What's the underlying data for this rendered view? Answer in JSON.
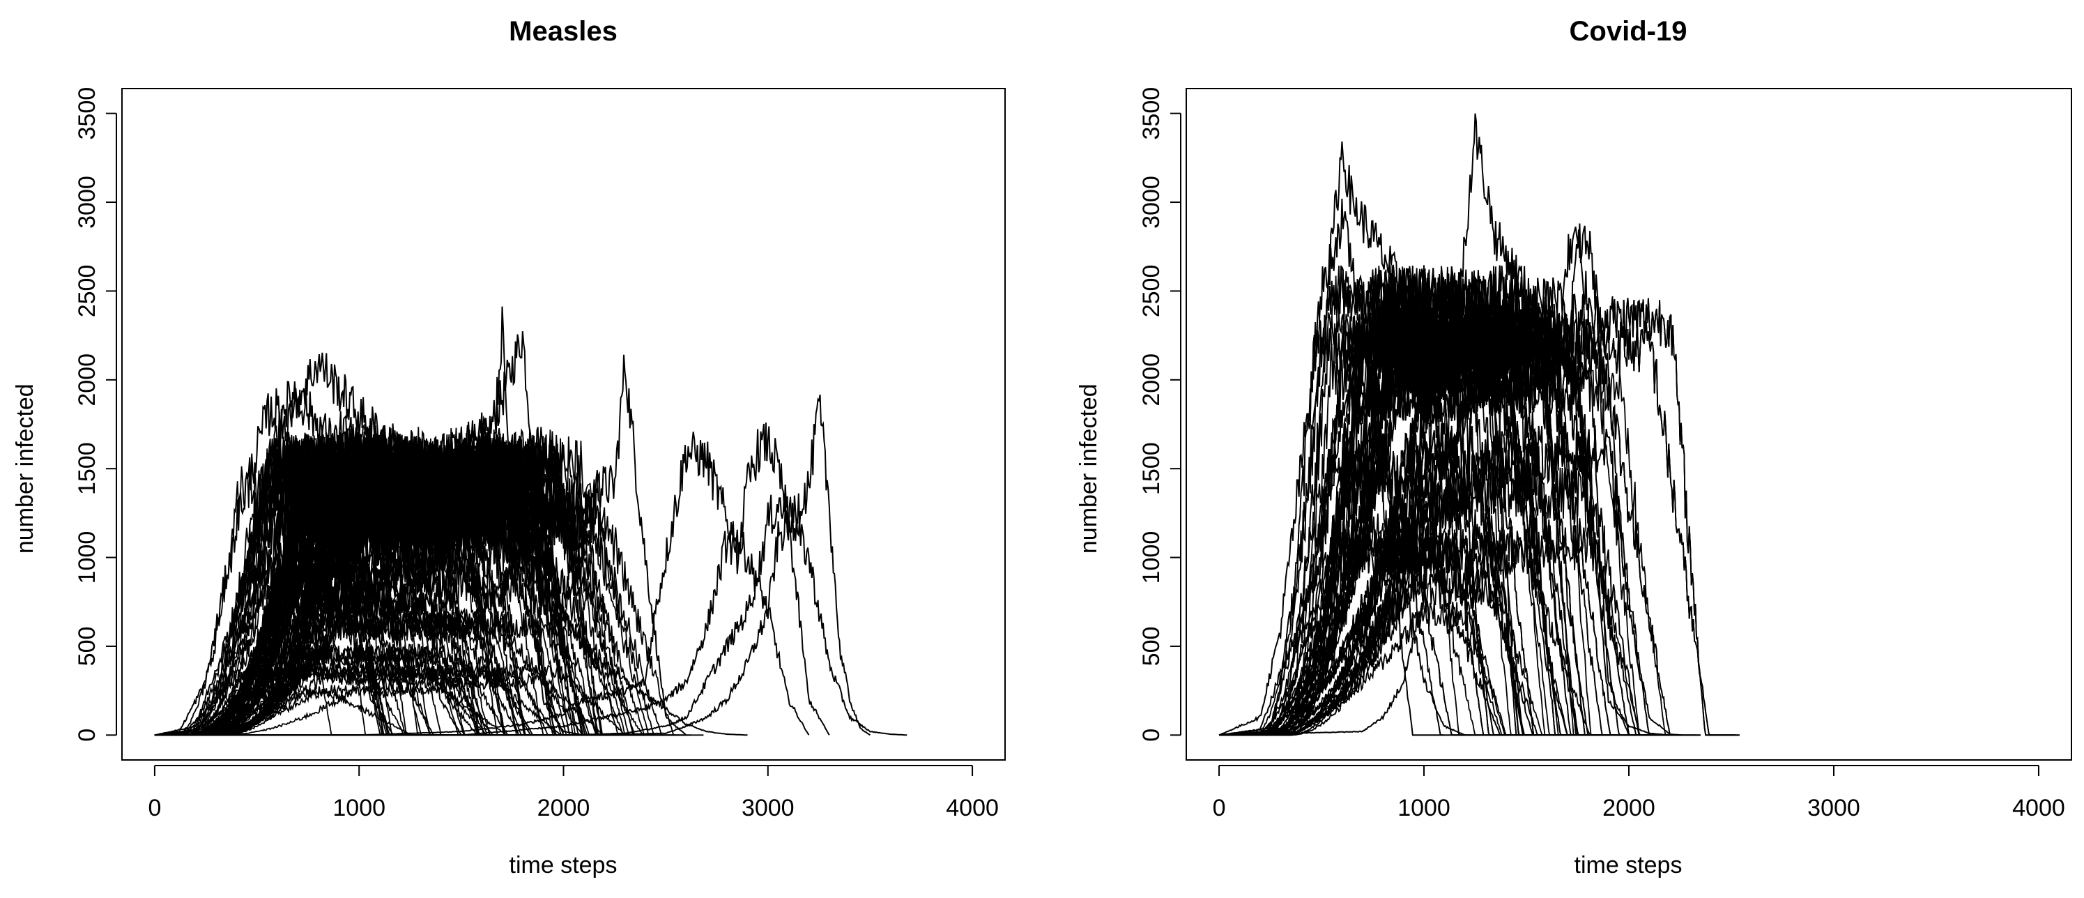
{
  "chart_data": [
    {
      "type": "line",
      "title": "Measles",
      "xlabel": "time steps",
      "ylabel": "number infected",
      "xlim": [
        -160,
        4160
      ],
      "ylim": [
        -140,
        3640
      ],
      "xticks": [
        0,
        1000,
        2000,
        3000,
        4000
      ],
      "yticks": [
        0,
        500,
        1000,
        1500,
        2000,
        2500,
        3000,
        3500
      ],
      "xtick_labels": [
        "0",
        "1000",
        "2000",
        "3000",
        "4000"
      ],
      "ytick_labels": [
        "0",
        "500",
        "1000",
        "1500",
        "2000",
        "2500",
        "3000",
        "3500"
      ],
      "grid": false,
      "line_color": "#000000",
      "n_series": 100,
      "series_summary": "Stochastic epidemic simulation runs; most runs start near t=100-250, rise to a noisy plateau of about 1200-1500 infected with peaks near 2000-2300, and die out between t=1000 and t=2000; a few late runs extend to about t=3600.",
      "series": [
        {
          "x": [
            0,
            150,
            300,
            450,
            550,
            650,
            800,
            950,
            1100,
            1250,
            1400,
            1500,
            1600,
            1700,
            1800,
            1850,
            1900,
            2000
          ],
          "values": [
            0,
            20,
            200,
            700,
            1400,
            1600,
            1500,
            1450,
            1500,
            1400,
            1450,
            1500,
            1600,
            1900,
            2250,
            1600,
            300,
            0
          ]
        },
        {
          "x": [
            0,
            200,
            350,
            500,
            600,
            700,
            800,
            900,
            1000,
            1100,
            1200,
            1300,
            1500,
            1600,
            1700,
            1750,
            1850,
            1950,
            2050,
            2150,
            2250,
            2300,
            2400,
            2500,
            2600
          ],
          "values": [
            0,
            30,
            150,
            500,
            900,
            1200,
            1300,
            1350,
            1200,
            1000,
            800,
            700,
            600,
            700,
            800,
            1000,
            1100,
            900,
            800,
            1400,
            1400,
            2100,
            1000,
            100,
            0
          ]
        },
        {
          "x": [
            0,
            250,
            400,
            600,
            800,
            1000,
            1200,
            1400,
            1550,
            1650,
            1700,
            1750,
            1800,
            1900,
            2000,
            2100,
            2200,
            2300,
            2400,
            2500,
            2600,
            2700,
            2800,
            2900
          ],
          "values": [
            0,
            10,
            80,
            300,
            600,
            800,
            900,
            1000,
            1300,
            1500,
            2300,
            1200,
            1100,
            1000,
            700,
            500,
            400,
            300,
            220,
            150,
            60,
            20,
            5,
            0
          ]
        },
        {
          "x": [
            0,
            1000,
            1500,
            1800,
            2000,
            2100,
            2200,
            2300,
            2400,
            2450,
            2500,
            2600,
            2700,
            2800,
            2900,
            3000,
            3100,
            3200
          ],
          "values": [
            0,
            0,
            20,
            60,
            120,
            200,
            220,
            250,
            300,
            700,
            1000,
            1600,
            1550,
            1200,
            1000,
            700,
            200,
            0
          ]
        },
        {
          "x": [
            0,
            1500,
            2000,
            2200,
            2400,
            2500,
            2600,
            2700,
            2800,
            2850,
            2900,
            2950,
            3000,
            3050,
            3100,
            3200,
            3300
          ],
          "values": [
            0,
            0,
            50,
            100,
            150,
            200,
            300,
            600,
            1100,
            1000,
            1400,
            1600,
            1650,
            1500,
            1200,
            200,
            0
          ]
        },
        {
          "x": [
            0,
            2000,
            2300,
            2500,
            2600,
            2700,
            2800,
            2900,
            3000,
            3050,
            3100,
            3150,
            3200,
            3250,
            3300,
            3350,
            3400,
            3450,
            3500
          ],
          "values": [
            0,
            0,
            5,
            10,
            50,
            100,
            200,
            400,
            700,
            1100,
            1200,
            1300,
            1400,
            1850,
            1300,
            500,
            200,
            40,
            0
          ]
        },
        {
          "x": [
            0,
            2000,
            2300,
            2500,
            2600,
            2700,
            2800,
            2900,
            2950,
            3000,
            3050,
            3100,
            3200,
            3300,
            3400,
            3500,
            3600,
            3680
          ],
          "values": [
            0,
            0,
            10,
            50,
            100,
            300,
            500,
            700,
            900,
            1200,
            1300,
            1250,
            1000,
            400,
            100,
            20,
            5,
            0
          ]
        },
        {
          "x": [
            0,
            200,
            400,
            600,
            800,
            1000,
            1200,
            1400,
            1600,
            1800,
            1900,
            2000,
            2100
          ],
          "values": [
            0,
            50,
            700,
            1700,
            2100,
            1800,
            1600,
            1500,
            1700,
            1100,
            200,
            20,
            0
          ]
        },
        {
          "x": [
            0,
            120,
            250,
            400,
            550,
            700,
            900,
            1100,
            1250,
            1400,
            1500
          ],
          "values": [
            0,
            20,
            300,
            1200,
            1800,
            1900,
            1600,
            1400,
            900,
            200,
            0
          ]
        },
        {
          "x": [
            0,
            300,
            500,
            700,
            900,
            1100,
            1300,
            1500,
            1650,
            1750,
            1850
          ],
          "values": [
            0,
            30,
            400,
            1200,
            1700,
            1600,
            1500,
            1300,
            900,
            200,
            0
          ]
        }
      ]
    },
    {
      "type": "line",
      "title": "Covid-19",
      "xlabel": "time steps",
      "ylabel": "number infected",
      "xlim": [
        -160,
        4160
      ],
      "ylim": [
        -140,
        3640
      ],
      "xticks": [
        0,
        1000,
        2000,
        3000,
        4000
      ],
      "yticks": [
        0,
        500,
        1000,
        1500,
        2000,
        2500,
        3000,
        3500
      ],
      "xtick_labels": [
        "0",
        "1000",
        "2000",
        "3000",
        "4000"
      ],
      "ytick_labels": [
        "0",
        "500",
        "1000",
        "1500",
        "2000",
        "2500",
        "3000",
        "3500"
      ],
      "grid": false,
      "line_color": "#000000",
      "n_series": 100,
      "series_summary": "Stochastic epidemic simulation runs; runs rise steeply from about t=150-300 to a noisy plateau near 2000-2500 infected with peaks up to about 3400, and die out between t=1000 and t=2250.",
      "series": [
        {
          "x": [
            0,
            200,
            350,
            500,
            600,
            650,
            750,
            850,
            950,
            1050,
            1150,
            1250,
            1350,
            1450,
            1550,
            1650,
            1750,
            1800,
            1850,
            1900,
            2000,
            2100,
            2200
          ],
          "values": [
            0,
            30,
            500,
            2200,
            3300,
            3000,
            2800,
            2600,
            2400,
            2300,
            2200,
            2400,
            2300,
            2200,
            2100,
            2200,
            2000,
            1500,
            800,
            200,
            50,
            10,
            0
          ]
        },
        {
          "x": [
            0,
            250,
            400,
            550,
            650,
            750,
            850,
            950,
            1050,
            1150,
            1250,
            1350,
            1450,
            1550,
            1650,
            1700,
            1750,
            1800,
            1850,
            1900,
            2000
          ],
          "values": [
            0,
            20,
            300,
            1500,
            2100,
            2200,
            2100,
            2000,
            2100,
            2200,
            3400,
            2800,
            2600,
            2400,
            2300,
            2000,
            2850,
            2400,
            1200,
            300,
            0
          ]
        },
        {
          "x": [
            0,
            300,
            500,
            700,
            900,
            1100,
            1300,
            1500,
            1600,
            1650,
            1700,
            1800,
            1900,
            2000,
            2100,
            2200,
            2260
          ],
          "values": [
            0,
            10,
            100,
            400,
            900,
            1600,
            2000,
            2200,
            2100,
            2000,
            2700,
            2800,
            2000,
            700,
            100,
            5,
            0
          ]
        },
        {
          "x": [
            0,
            200,
            300,
            400,
            500,
            600,
            700,
            800,
            900,
            1000,
            1100,
            1200
          ],
          "values": [
            0,
            100,
            600,
            1500,
            2500,
            2900,
            2400,
            1600,
            900,
            300,
            50,
            0
          ]
        },
        {
          "x": [
            0,
            700,
            800,
            900,
            1000,
            1100,
            1200,
            1300,
            1400,
            1500,
            1600,
            1700
          ],
          "values": [
            0,
            20,
            100,
            300,
            800,
            1500,
            1900,
            2000,
            1800,
            1200,
            400,
            0
          ]
        },
        {
          "x": [
            0,
            400,
            600,
            800,
            950,
            1100,
            1250,
            1400,
            1550,
            1650,
            1750
          ],
          "values": [
            0,
            20,
            200,
            700,
            1500,
            2100,
            2300,
            2200,
            1600,
            600,
            0
          ]
        },
        {
          "x": [
            0,
            250,
            450,
            600,
            800,
            1000,
            1200,
            1350,
            1500,
            1600,
            1700
          ],
          "values": [
            0,
            40,
            900,
            2000,
            2300,
            2200,
            2100,
            2000,
            1500,
            500,
            0
          ]
        },
        {
          "x": [
            0,
            300,
            500,
            650,
            850,
            1050,
            1250,
            1450,
            1600,
            1700,
            1800
          ],
          "values": [
            0,
            30,
            400,
            1700,
            2200,
            2100,
            2300,
            2100,
            1800,
            800,
            0
          ]
        }
      ]
    }
  ]
}
